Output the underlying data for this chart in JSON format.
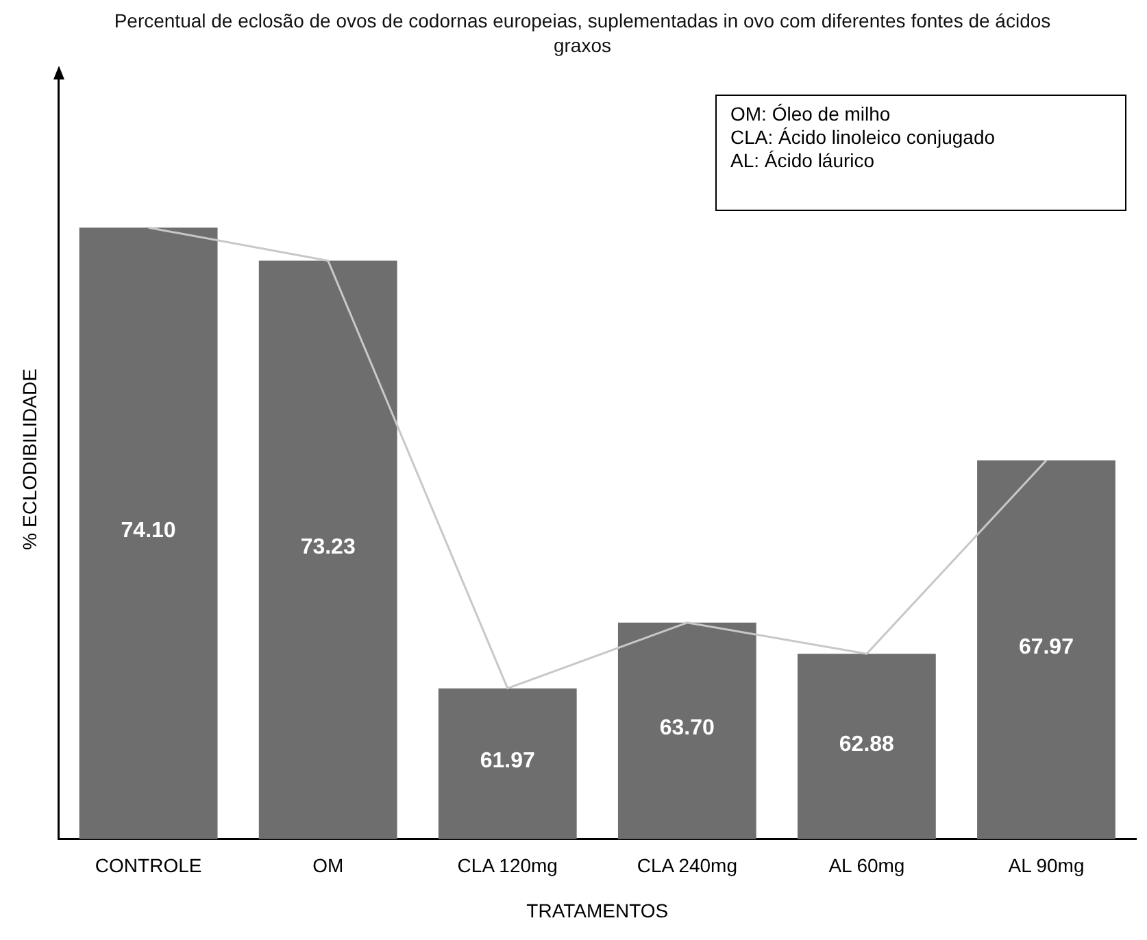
{
  "chart_data": {
    "type": "bar",
    "title": "Percentual de eclosão de ovos de codornas europeias, suplementadas in ovo com diferentes fontes de ácidos graxos",
    "xlabel": "TRATAMENTOS",
    "ylabel": "% ECLODIBILIDADE",
    "categories": [
      "CONTROLE",
      "OM",
      "CLA 120mg",
      "CLA 240mg",
      "AL 60mg",
      "AL 90mg"
    ],
    "series": [
      {
        "color": "#6e6e6e",
        "values": [
          74.1,
          73.23,
          61.97,
          63.7,
          62.88,
          67.97
        ],
        "value_labels": [
          "74.10",
          "73.23",
          "61.97",
          "63.70",
          "62.88",
          "67.97"
        ]
      },
      {
        "type": "line",
        "color": "#c8c8c8",
        "values": [
          74.1,
          73.23,
          61.97,
          63.7,
          62.88,
          67.97
        ]
      }
    ],
    "marker": "none",
    "annotations": [
      "OM: Óleo de milho",
      "CLA: Ácido linoleico conjugado",
      "AL: Ácido láurico"
    ]
  }
}
